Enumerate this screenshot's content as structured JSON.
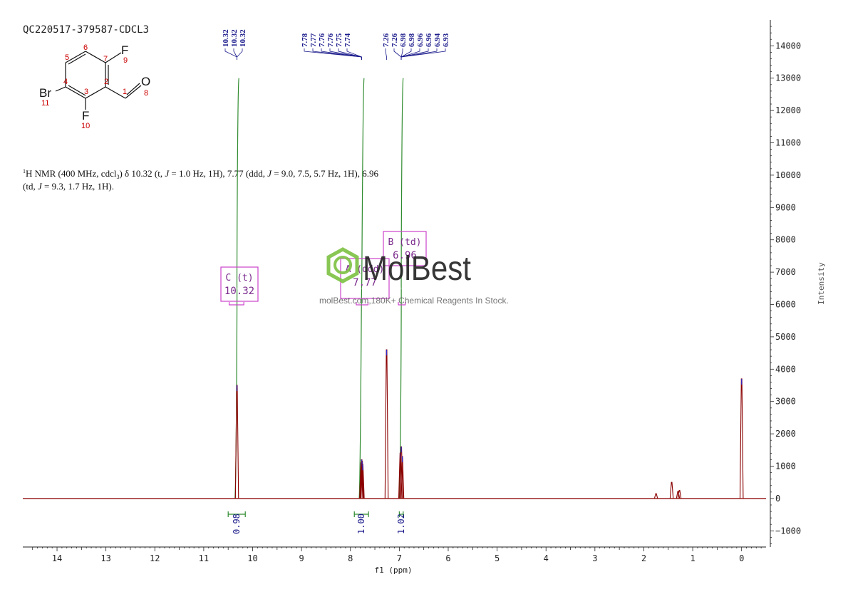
{
  "sample_id": "QC220517-379587-CDCL3",
  "structure": {
    "atoms": [
      {
        "id": "F9",
        "symbol": "F",
        "num": "9"
      },
      {
        "id": "O8",
        "symbol": "O",
        "num": "8"
      },
      {
        "id": "Br11",
        "symbol": "Br",
        "num": "11"
      },
      {
        "id": "F10",
        "symbol": "F",
        "num": "10"
      }
    ],
    "ring_numbers": [
      "5",
      "6",
      "7",
      "2",
      "3",
      "4",
      "1"
    ]
  },
  "nmr_text": {
    "sup": "1",
    "line1_a": "H NMR (400 MHz, cdcl",
    "sub": "3",
    "line1_b": ") δ 10.32 (t, ",
    "j": "J",
    "line1_c": " = 1.0 Hz, 1H), 7.77 (ddd, ",
    "line1_d": " = 9.0, 7.5, 5.7 Hz, 1H), 6.96",
    "line2_a": "(td, ",
    "line2_b": " = 9.3, 1.7 Hz, 1H)."
  },
  "peak_labels": [
    {
      "group": "g1",
      "text": "10.32"
    },
    {
      "group": "g1",
      "text": "10.32"
    },
    {
      "group": "g1",
      "text": "10.32"
    },
    {
      "group": "g2",
      "text": "7.78"
    },
    {
      "group": "g2",
      "text": "7.77"
    },
    {
      "group": "g2",
      "text": "7.76"
    },
    {
      "group": "g2",
      "text": "7.76"
    },
    {
      "group": "g2",
      "text": "7.75"
    },
    {
      "group": "g2",
      "text": "7.74"
    },
    {
      "group": "g3",
      "text": "7.26"
    },
    {
      "group": "g4",
      "text": "7.26"
    },
    {
      "group": "g4",
      "text": "6.98"
    },
    {
      "group": "g4",
      "text": "6.98"
    },
    {
      "group": "g4",
      "text": "6.96"
    },
    {
      "group": "g4",
      "text": "6.96"
    },
    {
      "group": "g4",
      "text": "6.94"
    },
    {
      "group": "g4",
      "text": "6.93"
    }
  ],
  "multiplets": [
    {
      "label": "C (t)",
      "shift": "10.32",
      "from": 10.48,
      "to": 10.18
    },
    {
      "label": "A (ddd)",
      "shift": "7.77",
      "from": 7.88,
      "to": 7.64
    },
    {
      "label": "B (td)",
      "shift": "6.96",
      "from": 7.02,
      "to": 6.88
    }
  ],
  "integrals": [
    {
      "value": "0.98",
      "from": 10.5,
      "to": 10.15
    },
    {
      "value": "1.00",
      "from": 7.92,
      "to": 7.63
    },
    {
      "value": "1.02",
      "from": 7.0,
      "to": 6.92
    }
  ],
  "watermark": {
    "brand": "MolBest",
    "tagline": "molBest.com,180K+ Chemical Reagents In Stock."
  },
  "colors": {
    "spectrum": "#8b0000",
    "labels": "#1a1a8c",
    "integral": "#2e8b2e",
    "multiplet": "#cc44cc",
    "watermark": "#7dc242"
  },
  "chart_data": {
    "type": "line",
    "xlabel": "f1 (ppm)",
    "ylabel": "Intensity",
    "xlim": [
      14.7,
      -0.5
    ],
    "ylim": [
      -1500,
      14800
    ],
    "x_ticks": [
      "14",
      "13",
      "12",
      "11",
      "10",
      "9",
      "8",
      "7",
      "6",
      "5",
      "4",
      "3",
      "2",
      "1",
      "0"
    ],
    "y_ticks": [
      "14000",
      "13000",
      "12000",
      "11000",
      "10000",
      "9000",
      "8000",
      "7000",
      "6000",
      "5000",
      "4000",
      "3000",
      "2000",
      "1000",
      "0",
      "−1000"
    ],
    "peaks": [
      {
        "ppm": 10.32,
        "intensity": 3500
      },
      {
        "ppm": 7.78,
        "intensity": 1100
      },
      {
        "ppm": 7.77,
        "intensity": 1200
      },
      {
        "ppm": 7.76,
        "intensity": 1150
      },
      {
        "ppm": 7.75,
        "intensity": 1050
      },
      {
        "ppm": 7.26,
        "intensity": 4600
      },
      {
        "ppm": 6.98,
        "intensity": 1400
      },
      {
        "ppm": 6.96,
        "intensity": 1600
      },
      {
        "ppm": 6.94,
        "intensity": 1300
      },
      {
        "ppm": 1.75,
        "intensity": 150
      },
      {
        "ppm": 1.43,
        "intensity": 500
      },
      {
        "ppm": 1.3,
        "intensity": 220
      },
      {
        "ppm": 1.27,
        "intensity": 250
      },
      {
        "ppm": 0.0,
        "intensity": 3700
      }
    ],
    "integral_curves": [
      {
        "x_from": 10.36,
        "x_to": 10.28,
        "y_from": 0,
        "y_to": 13000
      },
      {
        "x_from": 7.82,
        "x_to": 7.72,
        "y_from": 0,
        "y_to": 13000
      },
      {
        "x_from": 7.0,
        "x_to": 6.92,
        "y_from": 0,
        "y_to": 13000
      }
    ]
  }
}
